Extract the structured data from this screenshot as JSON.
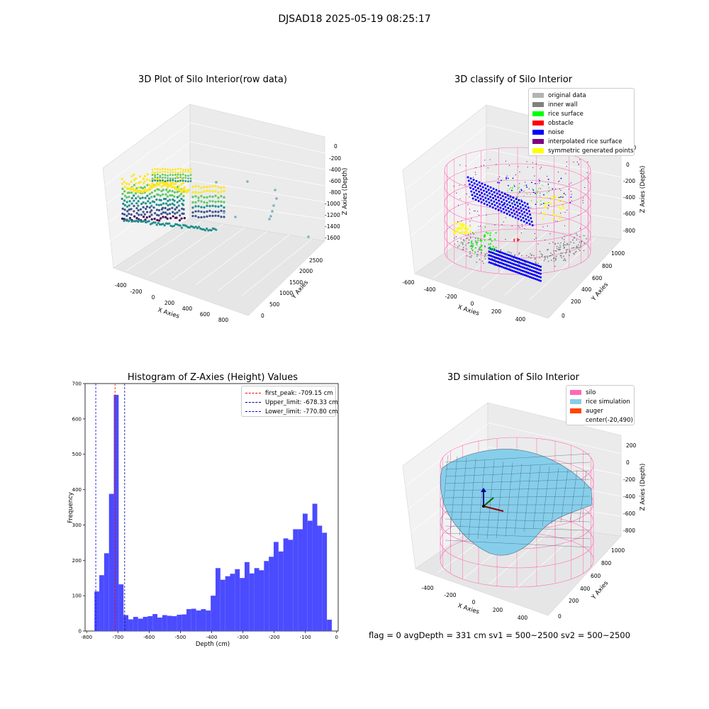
{
  "figure": {
    "suptitle": "DJSAD18 2025-05-19 08:25:17",
    "status_line": "flag = 0     avgDepth = 331 cm  sv1 = 500~2500  sv2 = 500~2500"
  },
  "colors": {
    "original_data": "#b3b3b3",
    "inner_wall": "#808080",
    "rice_surface": "#00ff00",
    "obstacle": "#ff0000",
    "noise": "#0000ff",
    "interpolated": "#800080",
    "symmetric": "#ffff00",
    "silo": "#ff69b4",
    "rice_sim": "#87ceeb",
    "auger": "#ff4500",
    "hist_bar": "#4b4bff"
  },
  "chart_data": [
    {
      "type": "scatter",
      "title": "3D Plot of Silo Interior(row data)",
      "xlabel": "X Axies",
      "ylabel": "Y Axies",
      "zlabel": "Z Axies (Depth)",
      "x_ticks": [
        "-400",
        "-200",
        "0",
        "200",
        "400",
        "600",
        "800"
      ],
      "y_ticks": [
        "0",
        "500",
        "1000",
        "1500",
        "2000",
        "2500"
      ],
      "z_ticks": [
        "0",
        "-200",
        "-400",
        "-600",
        "-800",
        "-1000",
        "-1200",
        "-1400",
        "-1600"
      ],
      "colormap": "viridis"
    },
    {
      "type": "scatter",
      "title": "3D classify of Silo Interior",
      "xlabel": "X Axies",
      "ylabel": "Y Axies",
      "zlabel": "Z Axies (Depth)",
      "x_ticks": [
        "-600",
        "-400",
        "-200",
        "0",
        "200",
        "400"
      ],
      "y_ticks": [
        "0",
        "200",
        "400",
        "600",
        "800",
        "1000"
      ],
      "z_ticks": [
        "200",
        "0",
        "-200",
        "-400",
        "-600",
        "-800"
      ],
      "legend": [
        "original data",
        "inner wall",
        "rice surface",
        "obstacle",
        "noise",
        "interpolated rice surface",
        "symmetric generated points"
      ]
    },
    {
      "type": "bar",
      "title": "Histogram of Z-Axies (Height) Values",
      "xlabel": "Depth (cm)",
      "ylabel": "Frequency",
      "xlim": [
        -805,
        5
      ],
      "ylim": [
        0,
        700
      ],
      "x_ticks": [
        -800,
        -700,
        -600,
        -500,
        -400,
        -300,
        -200,
        -100,
        0
      ],
      "y_ticks": [
        0,
        100,
        200,
        300,
        400,
        500,
        600,
        700
      ],
      "bin_start": -775,
      "bin_width": 15.5,
      "values": [
        112,
        158,
        220,
        388,
        668,
        132,
        45,
        33,
        40,
        35,
        40,
        42,
        48,
        38,
        45,
        43,
        42,
        46,
        47,
        62,
        63,
        58,
        62,
        58,
        100,
        178,
        145,
        155,
        162,
        175,
        150,
        195,
        163,
        178,
        172,
        198,
        210,
        252,
        225,
        262,
        258,
        288,
        288,
        332,
        312,
        360,
        298,
        278,
        32
      ],
      "vlines": [
        {
          "label": "first_peak: -709.15 cm",
          "x": -709.15,
          "color": "#ff0000"
        },
        {
          "label": "Upper_limit: -678.33 cm",
          "x": -678.33,
          "color": "#00008b"
        },
        {
          "label": "Lower_limit: -770.80 cm",
          "x": -770.8,
          "color": "#0000ff"
        }
      ]
    },
    {
      "type": "area",
      "title": "3D simulation of Silo Interior",
      "xlabel": "X Axies",
      "ylabel": "Y Axies",
      "zlabel": "Z Axies (Depth)",
      "x_ticks": [
        "-400",
        "-200",
        "0",
        "200",
        "400"
      ],
      "y_ticks": [
        "0",
        "200",
        "400",
        "600",
        "800",
        "1000"
      ],
      "z_ticks": [
        "200",
        "0",
        "-200",
        "-400",
        "-600",
        "-800"
      ],
      "legend": [
        "silo",
        "rice simulation",
        "auger",
        "center(-20,490)"
      ]
    }
  ]
}
